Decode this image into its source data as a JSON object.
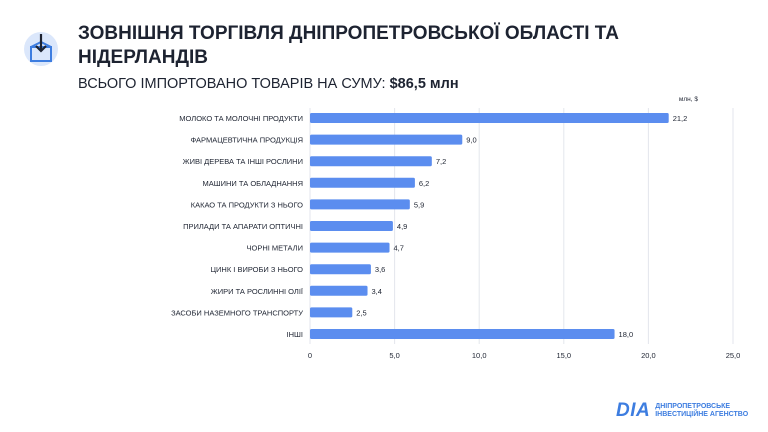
{
  "header": {
    "title": "ЗОВНІШНЯ ТОРГІВЛЯ ДНІПРОПЕТРОВСЬКОЇ ОБЛАСТІ ТА НІДЕРЛАНДІВ",
    "subtitle_label": "ВСЬОГО ІМПОРТОВАНО ТОВАРІВ НА СУМУ:",
    "subtitle_amount": "$86,5 млн"
  },
  "brand": {
    "mark": "DIA",
    "line1": "ДНІПРОПЕТРОВСЬКЕ",
    "line2": "ІНВЕСТИЦІЙНЕ АГЕНСТВО"
  },
  "colors": {
    "bar": "#5b8def",
    "grid": "#e3e6ec",
    "text": "#1d2331",
    "brand": "#3d7de0"
  },
  "chart_data": {
    "type": "bar",
    "orientation": "horizontal",
    "unit_label": "млн, $",
    "categories": [
      "МОЛОКО ТА МОЛОЧНІ ПРОДУКТИ",
      "ФАРМАЦЕВТИЧНА ПРОДУКЦІЯ",
      "ЖИВІ ДЕРЕВА ТА ІНШІ РОСЛИНИ",
      "МАШИНИ ТА ОБЛАДНАННЯ",
      "КАКАО ТА ПРОДУКТИ З НЬОГО",
      "ПРИЛАДИ ТА АПАРАТИ ОПТИЧНІ",
      "ЧОРНІ МЕТАЛИ",
      "ЦИНК І ВИРОБИ З НЬОГО",
      "ЖИРИ ТА РОСЛИННІ ОЛІЇ",
      "ЗАСОБИ НАЗЕМНОГО ТРАНСПОРТУ",
      "ІНШІ"
    ],
    "values": [
      21.2,
      9.0,
      7.2,
      6.2,
      5.9,
      4.9,
      4.7,
      3.6,
      3.4,
      2.5,
      18.0
    ],
    "value_labels": [
      "21,2",
      "9,0",
      "7,2",
      "6,2",
      "5,9",
      "4,9",
      "4,7",
      "3,6",
      "3,4",
      "2,5",
      "18,0"
    ],
    "xticks": [
      0,
      5,
      10,
      15,
      20,
      25
    ],
    "xtick_labels": [
      "0",
      "5,0",
      "10,0",
      "15,0",
      "20,0",
      "25,0"
    ],
    "xlim": [
      0,
      25
    ],
    "grid": true
  }
}
